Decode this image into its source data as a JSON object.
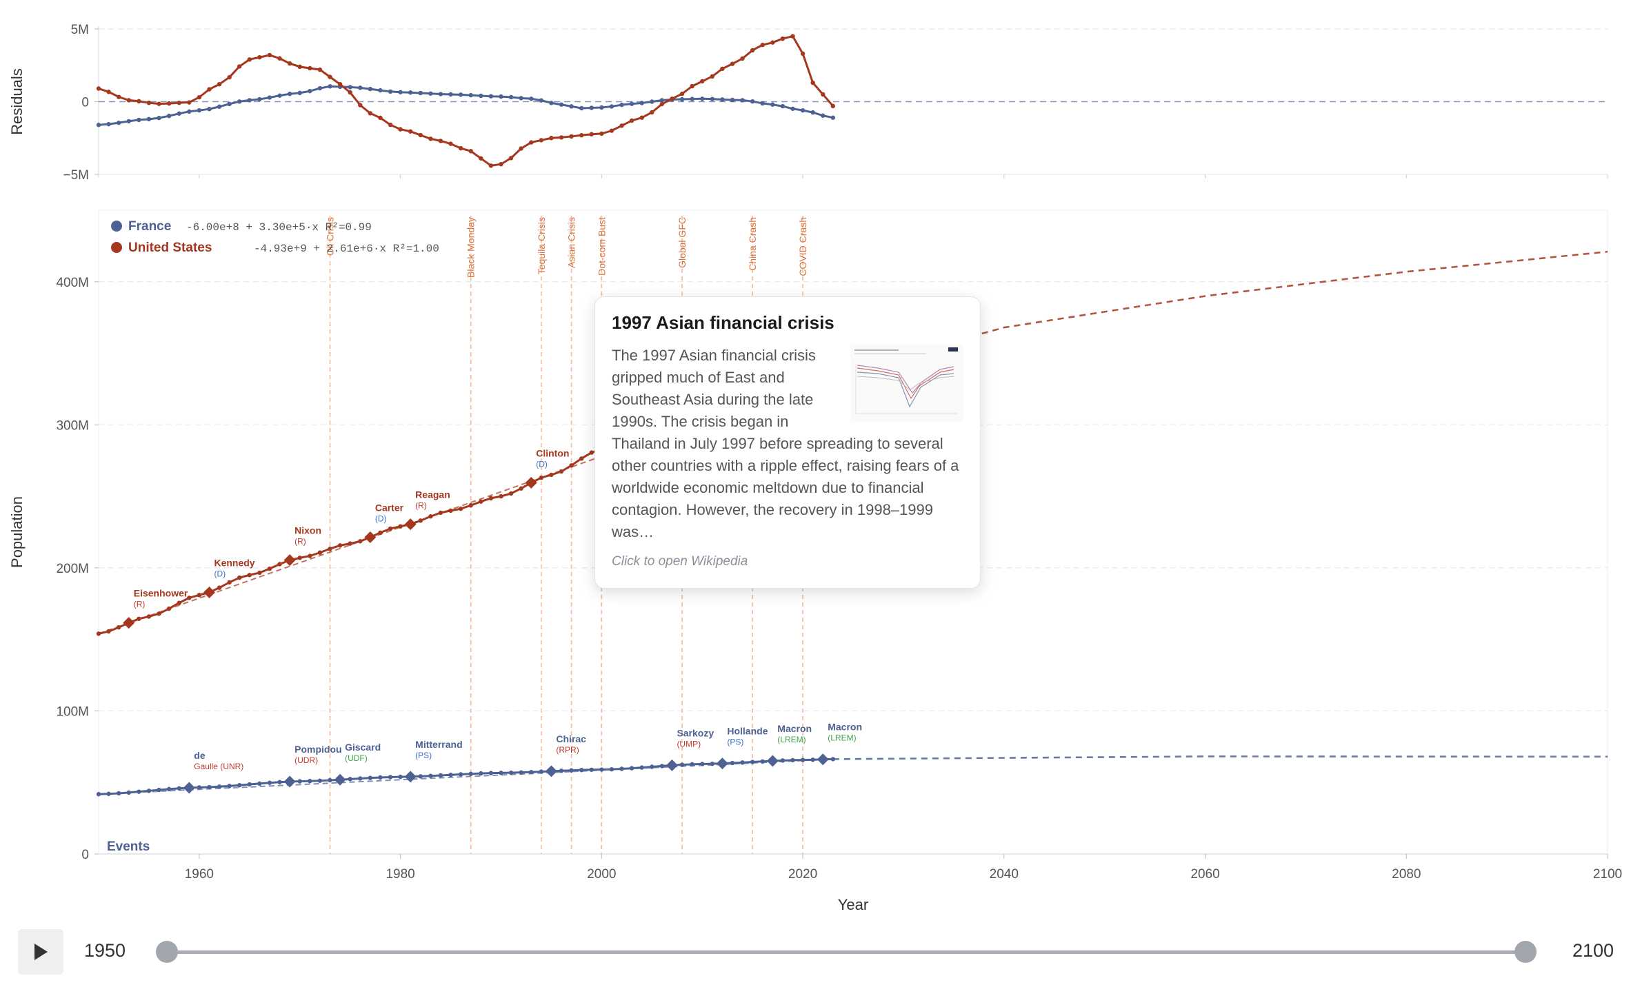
{
  "chart_data": [
    {
      "type": "line",
      "panel": "residuals",
      "ylabel": "Residuals",
      "ylim": [
        -5000000,
        5000000
      ],
      "yticks": [
        {
          "v": 5000000,
          "label": "5M"
        },
        {
          "v": 0,
          "label": "0"
        },
        {
          "v": -5000000,
          "label": "−5M"
        }
      ],
      "series": [
        {
          "name": "France",
          "color": "#4e6193",
          "knots": [
            [
              1950,
              -1600000.0
            ],
            [
              1955,
              -1200000.0
            ],
            [
              1960,
              -600000.0
            ],
            [
              1965,
              100000.0
            ],
            [
              1970,
              600000.0
            ],
            [
              1973,
              1050000.0
            ],
            [
              1975,
              1000000.0
            ],
            [
              1980,
              650000.0
            ],
            [
              1985,
              500000.0
            ],
            [
              1990,
              350000.0
            ],
            [
              1993,
              200000.0
            ],
            [
              1996,
              -200000.0
            ],
            [
              1998,
              -450000.0
            ],
            [
              2000,
              -400000.0
            ],
            [
              2003,
              -150000.0
            ],
            [
              2007,
              150000.0
            ],
            [
              2010,
              200000.0
            ],
            [
              2014,
              100000.0
            ],
            [
              2017,
              -200000.0
            ],
            [
              2020,
              -600000.0
            ],
            [
              2023,
              -1100000.0
            ]
          ]
        },
        {
          "name": "United States",
          "color": "#a4381f",
          "knots": [
            [
              1950,
              900000.0
            ],
            [
              1953,
              100000.0
            ],
            [
              1956,
              -150000.0
            ],
            [
              1959,
              -50000.0
            ],
            [
              1962,
              1200000.0
            ],
            [
              1965,
              2900000.0
            ],
            [
              1967,
              3200000.0
            ],
            [
              1970,
              2400000.0
            ],
            [
              1972,
              2200000.0
            ],
            [
              1974,
              1200000.0
            ],
            [
              1977,
              -800000.0
            ],
            [
              1980,
              -1900000.0
            ],
            [
              1984,
              -2700000.0
            ],
            [
              1987,
              -3400000.0
            ],
            [
              1989,
              -4400000.0
            ],
            [
              1990,
              -4300000.0
            ],
            [
              1993,
              -2800000.0
            ],
            [
              1995,
              -2500000.0
            ],
            [
              2000,
              -2200000.0
            ],
            [
              2004,
              -1100000.0
            ],
            [
              2007,
              200000.0
            ],
            [
              2010,
              1400000.0
            ],
            [
              2013,
              2600000.0
            ],
            [
              2016,
              3900000.0
            ],
            [
              2019,
              4500000.0
            ],
            [
              2020,
              3300000.0
            ],
            [
              2021,
              1300000.0
            ],
            [
              2023,
              -300000.0
            ]
          ]
        }
      ]
    },
    {
      "type": "line",
      "panel": "population",
      "xlabel": "Year",
      "ylabel": "Population",
      "xlim": [
        1950,
        2100
      ],
      "ylim": [
        0,
        450000000
      ],
      "xticks": [
        1960,
        1980,
        2000,
        2020,
        2040,
        2060,
        2080,
        2100
      ],
      "yticks": [
        {
          "v": 0,
          "label": "0"
        },
        {
          "v": 100000000,
          "label": "100M"
        },
        {
          "v": 200000000,
          "label": "200M"
        },
        {
          "v": 300000000,
          "label": "300M"
        },
        {
          "v": 400000000,
          "label": "400M"
        }
      ],
      "legend": [
        {
          "name": "France",
          "color": "#4e6193",
          "equation": "-6.00e+8 + 3.30e+5·x R²=0.99"
        },
        {
          "name": "United States",
          "color": "#a4381f",
          "equation": "-4.93e+9 + 2.61e+6·x R²=1.00"
        }
      ],
      "series": [
        {
          "name": "France",
          "color": "#4e6193",
          "knots": [
            [
              1950,
              41800000.0
            ],
            [
              1960,
              46500000.0
            ],
            [
              1970,
              50800000.0
            ],
            [
              1980,
              53900000.0
            ],
            [
              1990,
              56700000.0
            ],
            [
              2000,
              59000000.0
            ],
            [
              2010,
              62900000.0
            ],
            [
              2020,
              65700000.0
            ],
            [
              2023,
              66300000.0
            ]
          ],
          "projection": [
            [
              2023,
              66300000.0
            ],
            [
              2060,
              68200000.0
            ],
            [
              2100,
              68000000.0
            ]
          ]
        },
        {
          "name": "United States",
          "color": "#a4381f",
          "knots": [
            [
              1950,
              154000000.0
            ],
            [
              1955,
              166000000.0
            ],
            [
              1960,
              181000000.0
            ],
            [
              1965,
              195000000.0
            ],
            [
              1970,
              207000000.0
            ],
            [
              1975,
              217000000.0
            ],
            [
              1980,
              229000000.0
            ],
            [
              1985,
              240000000.0
            ],
            [
              1990,
              250000000.0
            ],
            [
              1995,
              265000000.0
            ],
            [
              2000,
              283000000.0
            ],
            [
              2005,
              296000000.0
            ],
            [
              2010,
              310000000.0
            ],
            [
              2015,
              321000000.0
            ],
            [
              2020,
              332000000.0
            ],
            [
              2023,
              335000000.0
            ]
          ],
          "projection": [
            [
              2023,
              335000000.0
            ],
            [
              2040,
              368000000.0
            ],
            [
              2060,
              390000000.0
            ],
            [
              2080,
              407000000.0
            ],
            [
              2100,
              421000000.0
            ]
          ]
        }
      ],
      "events": [
        {
          "year": 1973,
          "label": "Oil Crisis"
        },
        {
          "year": 1987,
          "label": "Black Monday"
        },
        {
          "year": 1994,
          "label": "Tequila Crisis"
        },
        {
          "year": 1997,
          "label": "Asian Crisis"
        },
        {
          "year": 2000,
          "label": "Dot-com Bust"
        },
        {
          "year": 2008,
          "label": "Global GFC"
        },
        {
          "year": 2015,
          "label": "China Crash"
        },
        {
          "year": 2020,
          "label": "COVID Crash"
        }
      ],
      "events_label": "Events",
      "presidents_us": [
        {
          "year": 1953,
          "name": "Eisenhower",
          "party": "(R)",
          "pcolor": "#c0392b"
        },
        {
          "year": 1961,
          "name": "Kennedy",
          "party": "(D)",
          "pcolor": "#3b6fc4"
        },
        {
          "year": 1969,
          "name": "Nixon",
          "party": "(R)",
          "pcolor": "#c0392b"
        },
        {
          "year": 1977,
          "name": "Carter",
          "party": "(D)",
          "pcolor": "#3b6fc4"
        },
        {
          "year": 1981,
          "name": "Reagan",
          "party": "(R)",
          "pcolor": "#c0392b"
        },
        {
          "year": 1993,
          "name": "Clinton",
          "party": "(D)",
          "pcolor": "#3b6fc4"
        }
      ],
      "presidents_fr": [
        {
          "year": 1959,
          "name": "de",
          "party": "Gaulle (UNR)",
          "pcolor": "#c0392b"
        },
        {
          "year": 1969,
          "name": "Pompidou",
          "party": "(UDR)",
          "pcolor": "#c0392b"
        },
        {
          "year": 1974,
          "name": "Giscard",
          "party": "(UDF)",
          "pcolor": "#3fa34d"
        },
        {
          "year": 1981,
          "name": "Mitterrand",
          "party": "(PS)",
          "pcolor": "#3b6fc4"
        },
        {
          "year": 1995,
          "name": "Chirac",
          "party": "(RPR)",
          "pcolor": "#c0392b"
        },
        {
          "year": 2007,
          "name": "Sarkozy",
          "party": "(UMP)",
          "pcolor": "#c0392b"
        },
        {
          "year": 2012,
          "name": "Hollande",
          "party": "(PS)",
          "pcolor": "#3b6fc4"
        },
        {
          "year": 2017,
          "name": "Macron",
          "party": "(LREM)",
          "pcolor": "#3fa34d"
        },
        {
          "year": 2022,
          "name": "Macron",
          "party": "(LREM)",
          "pcolor": "#3fa34d"
        }
      ]
    }
  ],
  "tooltip": {
    "title": "1997 Asian financial crisis",
    "body": "The 1997 Asian financial crisis gripped much of East and Southeast Asia during the late 1990s. The crisis began in Thailand in July 1997 before spreading to several other countries with a ripple effect, raising fears of a worldwide economic meltdown due to financial contagion. However, the recovery in 1998–1999 was…",
    "hint": "Click to open Wikipedia"
  },
  "slider": {
    "start_label": "1950",
    "end_label": "2100",
    "range_start": 1950,
    "range_end": 2100,
    "value_start": 1950,
    "value_end": 2100
  }
}
